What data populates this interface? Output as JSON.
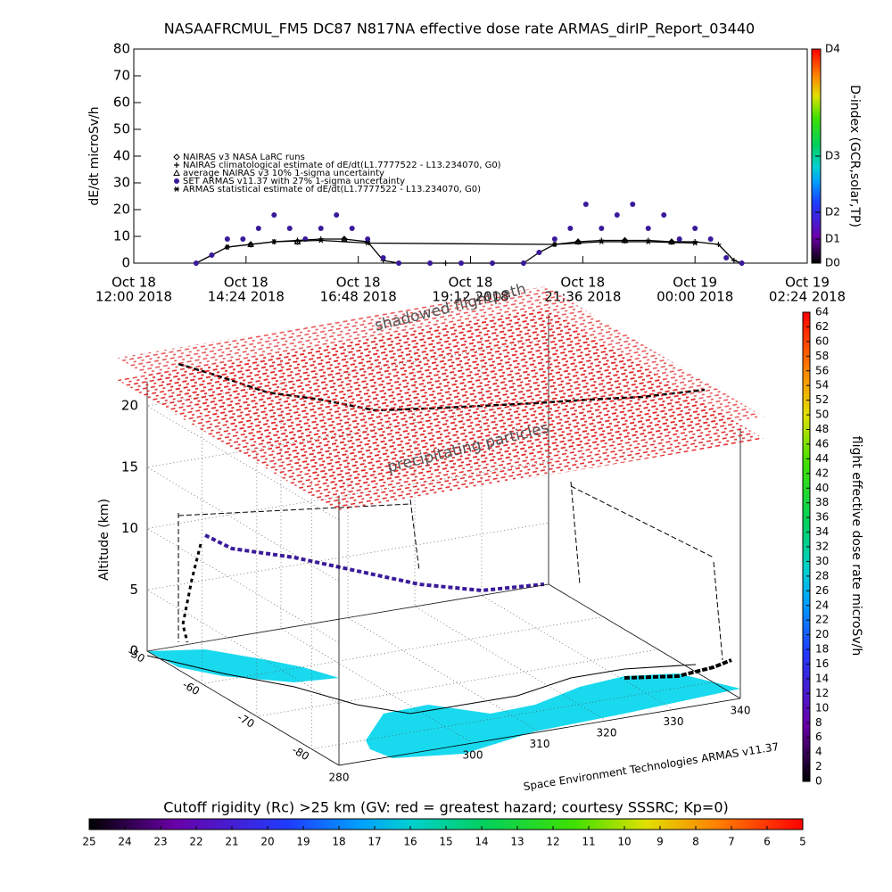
{
  "chart_data": [
    {
      "type": "scatter",
      "title": "NASAAFRCMUL_FM5 DC87 N817NA effective dose rate ARMAS_dirIP_Report_03440",
      "y_label": "dE/dt microSv/h",
      "y2_label": "D-index (GCR,solar,TP)",
      "xlim": [
        "2018-10-18T12:00",
        "2018-10-19T02:24"
      ],
      "xticks": [
        {
          "value": "2018-10-18T12:00",
          "label": [
            "Oct 18",
            "12:00 2018"
          ]
        },
        {
          "value": "2018-10-18T14:24",
          "label": [
            "Oct 18",
            "14:24 2018"
          ]
        },
        {
          "value": "2018-10-18T16:48",
          "label": [
            "Oct 18",
            "16:48 2018"
          ]
        },
        {
          "value": "2018-10-18T19:12",
          "label": [
            "Oct 18",
            "19:12 2018"
          ]
        },
        {
          "value": "2018-10-18T21:36",
          "label": [
            "Oct 18",
            "21:36 2018"
          ]
        },
        {
          "value": "2018-10-19T00:00",
          "label": [
            "Oct 19",
            "00:00 2018"
          ]
        },
        {
          "value": "2018-10-19T02:24",
          "label": [
            "Oct 19",
            "02:24 2018"
          ]
        }
      ],
      "ylim": [
        0,
        80
      ],
      "yticks": [
        0,
        10,
        20,
        30,
        40,
        50,
        60,
        70,
        80
      ],
      "y2lim": [
        0,
        80
      ],
      "y2ticks": [
        {
          "value": 0,
          "label": "D0"
        },
        {
          "value": 9,
          "label": "D1"
        },
        {
          "value": 19,
          "label": "D2"
        },
        {
          "value": 40,
          "label": "D3"
        },
        {
          "value": 80,
          "label": "D4"
        }
      ],
      "series": [
        {
          "name": "NAIRAS v3 NASA LaRC runs",
          "marker": "diamond",
          "color": "#000000",
          "x": [
            "2018-10-18T14:30",
            "2018-10-18T15:30",
            "2018-10-18T16:30",
            "2018-10-18T21:30",
            "2018-10-18T22:30",
            "2018-10-18T23:30"
          ],
          "values": [
            7,
            8,
            9,
            8,
            8.5,
            8
          ]
        },
        {
          "name": "NAIRAS climatological estimate of dE/dt(L1.7777522 - L13.234070, G0)",
          "marker": "plus",
          "color": "#000000",
          "line": true,
          "x": [
            "2018-10-18T13:20",
            "2018-10-18T13:40",
            "2018-10-18T14:00",
            "2018-10-18T14:30",
            "2018-10-18T15:00",
            "2018-10-18T15:30",
            "2018-10-18T16:00",
            "2018-10-18T16:30",
            "2018-10-18T17:00",
            "2018-10-18T17:20",
            "2018-10-18T17:40",
            "2018-10-18T18:40",
            "2018-10-18T19:40",
            "2018-10-18T20:20",
            "2018-10-18T20:40",
            "2018-10-18T21:00",
            "2018-10-18T21:30",
            "2018-10-18T22:00",
            "2018-10-18T22:30",
            "2018-10-18T23:00",
            "2018-10-18T23:30",
            "2018-10-19T00:00",
            "2018-10-19T00:30",
            "2018-10-19T00:50",
            "2018-10-19T01:00"
          ],
          "values": [
            0,
            3,
            6,
            7,
            8,
            8.5,
            9,
            9,
            8,
            1,
            0,
            0,
            0,
            0,
            4,
            7,
            8,
            8.5,
            8.5,
            8.5,
            8,
            8,
            7,
            1,
            0
          ]
        },
        {
          "name": "average NAIRAS v3 10% 1-sigma uncertainty",
          "marker": "triangle",
          "color": "#000000",
          "x": [
            "2018-10-18T14:30",
            "2018-10-18T15:30",
            "2018-10-18T16:30",
            "2018-10-18T21:30",
            "2018-10-18T22:30",
            "2018-10-18T23:30"
          ],
          "values": [
            7,
            8,
            9,
            8,
            8.5,
            8
          ]
        },
        {
          "name": "SET ARMAS v11.37 with 27% 1-sigma uncertainty",
          "marker": "circle",
          "color": "#3a1a9a",
          "x": [
            "2018-10-18T13:20",
            "2018-10-18T13:40",
            "2018-10-18T14:00",
            "2018-10-18T14:20",
            "2018-10-18T14:40",
            "2018-10-18T15:00",
            "2018-10-18T15:20",
            "2018-10-18T15:40",
            "2018-10-18T16:00",
            "2018-10-18T16:20",
            "2018-10-18T16:40",
            "2018-10-18T17:00",
            "2018-10-18T17:20",
            "2018-10-18T17:40",
            "2018-10-18T18:20",
            "2018-10-18T19:00",
            "2018-10-18T19:40",
            "2018-10-18T20:20",
            "2018-10-18T20:40",
            "2018-10-18T21:00",
            "2018-10-18T21:20",
            "2018-10-18T21:40",
            "2018-10-18T22:00",
            "2018-10-18T22:20",
            "2018-10-18T22:40",
            "2018-10-18T23:00",
            "2018-10-18T23:20",
            "2018-10-18T23:40",
            "2018-10-19T00:00",
            "2018-10-19T00:20",
            "2018-10-19T00:40",
            "2018-10-19T01:00"
          ],
          "values": [
            0,
            3,
            9,
            9,
            13,
            18,
            13,
            9,
            13,
            18,
            13,
            9,
            2,
            0,
            0,
            0,
            0,
            0,
            4,
            9,
            13,
            22,
            13,
            18,
            22,
            13,
            18,
            9,
            13,
            9,
            2,
            0
          ]
        },
        {
          "name": "ARMAS statistical estimate of dE/dt(L1.7777522 - L13.234070, G0)",
          "marker": "asterisk",
          "color": "#000000",
          "line": true,
          "x": [
            "2018-10-18T14:00",
            "2018-10-18T15:00",
            "2018-10-18T16:00",
            "2018-10-18T17:00",
            "2018-10-18T21:00",
            "2018-10-18T22:00",
            "2018-10-18T23:00",
            "2018-10-19T00:00"
          ],
          "values": [
            6,
            8,
            8.5,
            7.5,
            7,
            8,
            8,
            7.5
          ]
        }
      ]
    },
    {
      "type": "surface3d",
      "annotations": [
        "shadowed flightpath",
        "precipitating particles"
      ],
      "z_label": "Altitude (km)",
      "zticks": [
        0,
        5,
        10,
        15,
        20
      ],
      "latlim": [
        -50,
        -85
      ],
      "latticks": [
        -50,
        -60,
        -70,
        -80
      ],
      "lonlim": [
        280,
        340
      ],
      "lonticks": [
        280,
        300,
        310,
        320,
        330,
        340
      ],
      "credit": "Space Environment Technologies ARMAS v11.37",
      "colorbar": {
        "label": "flight effective dose rate microSv/h",
        "lim": [
          0,
          64
        ],
        "ticks": [
          0,
          2,
          4,
          6,
          8,
          10,
          12,
          14,
          16,
          18,
          20,
          22,
          24,
          26,
          28,
          30,
          32,
          34,
          36,
          38,
          40,
          42,
          44,
          46,
          48,
          50,
          52,
          54,
          56,
          58,
          60,
          62,
          64
        ]
      },
      "rigidity_bar": {
        "title": "Cutoff rigidity (Rc) >25 km (GV: red = greatest hazard; courtesy SSSRC; Kp=0)",
        "lim": [
          25,
          5
        ],
        "ticks": [
          25,
          24,
          23,
          22,
          21,
          20,
          19,
          18,
          17,
          16,
          15,
          14,
          13,
          12,
          11,
          10,
          9,
          8,
          7,
          6,
          5
        ]
      }
    }
  ]
}
